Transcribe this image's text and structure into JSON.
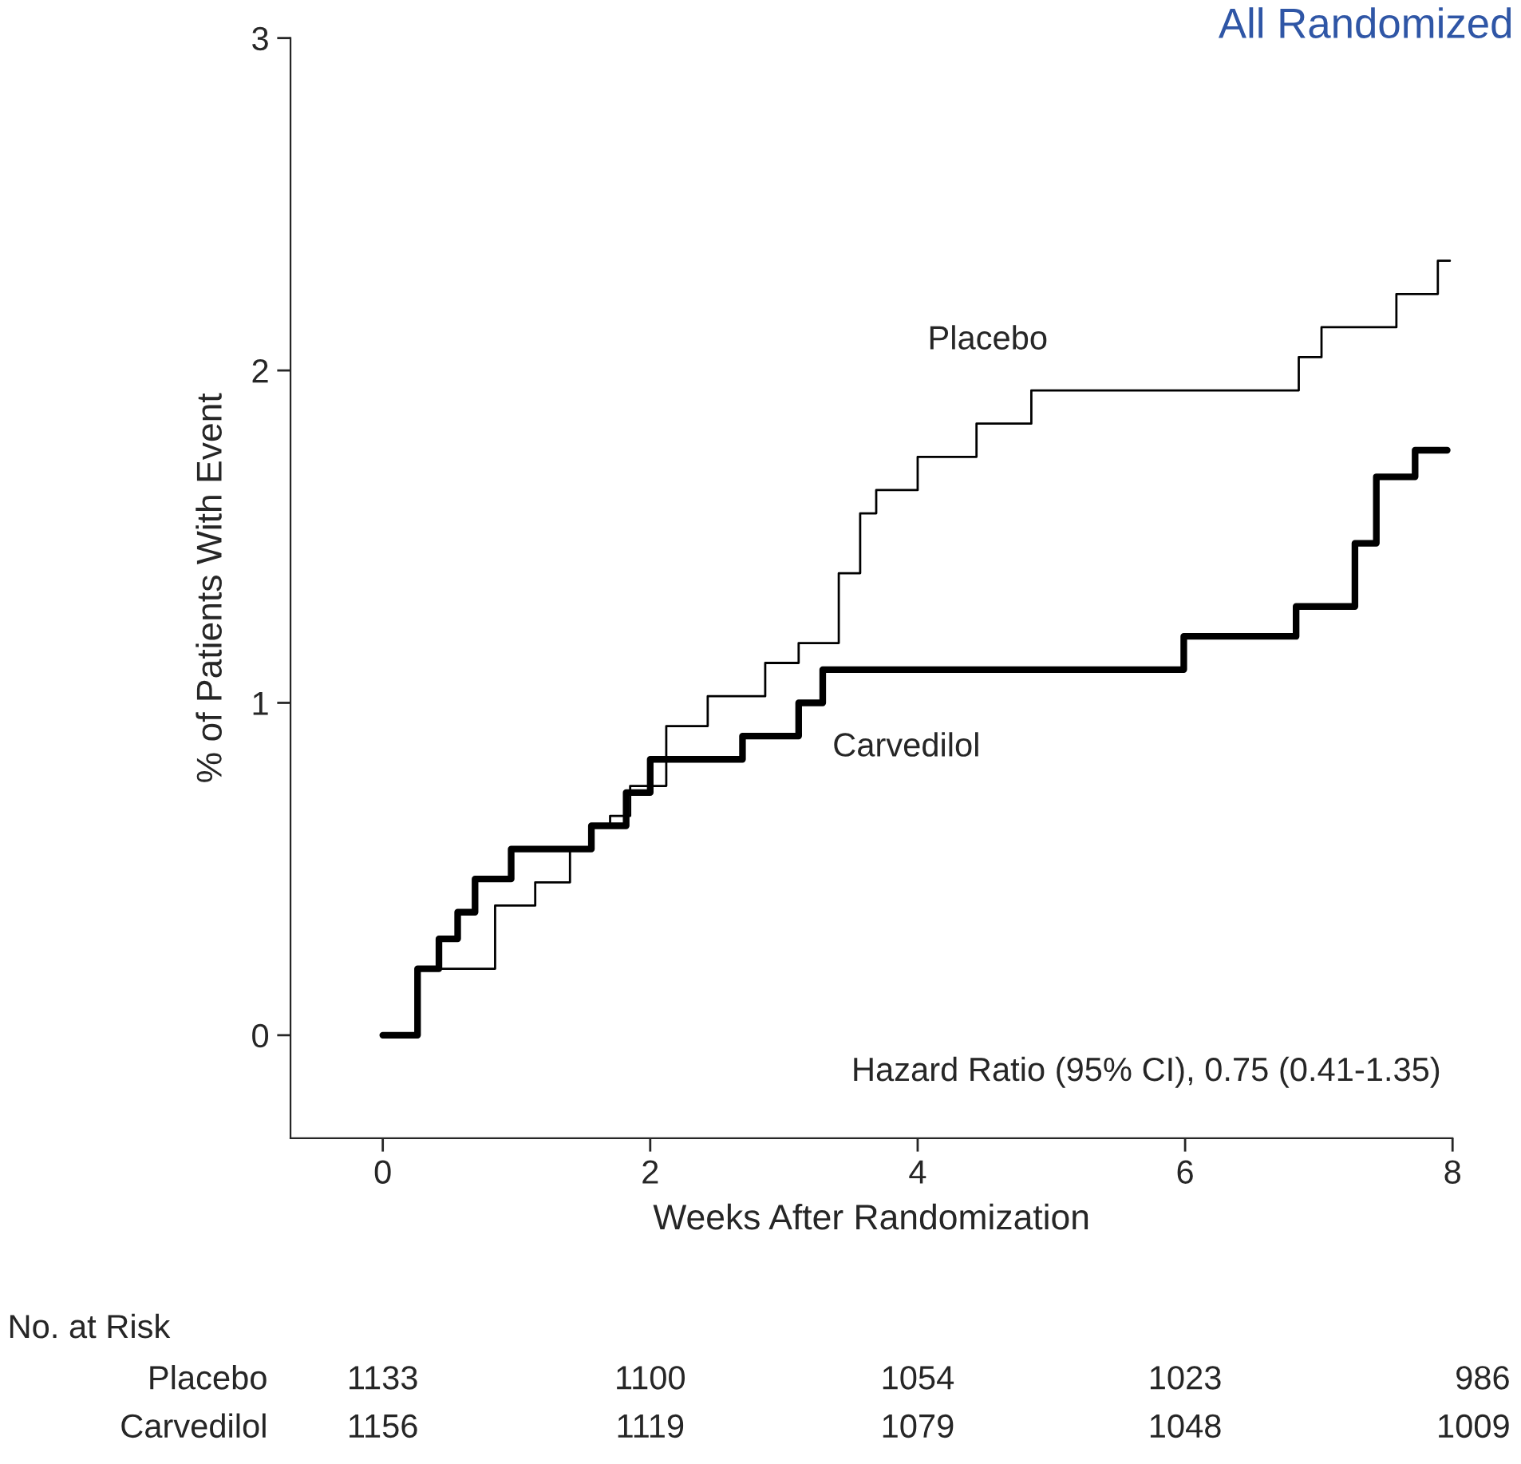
{
  "chart_data": {
    "type": "step",
    "title": "All Randomized",
    "xlabel": "Weeks After Randomization",
    "ylabel": "% of Patients With Event",
    "series": [
      {
        "name": "Placebo",
        "color": "#000000",
        "x": [
          0,
          0.26,
          0.84,
          1.14,
          1.4,
          1.56,
          1.7,
          1.85,
          2.12,
          2.43,
          2.86,
          3.11,
          3.41,
          3.57,
          3.69,
          4.0,
          4.44,
          4.85,
          6.85,
          7.02,
          7.58,
          7.89,
          7.98
        ],
        "values": [
          0,
          0.2,
          0.39,
          0.46,
          0.56,
          0.63,
          0.66,
          0.75,
          0.93,
          1.02,
          1.12,
          1.18,
          1.39,
          1.57,
          1.64,
          1.74,
          1.84,
          1.94,
          2.04,
          2.13,
          2.23,
          2.33,
          2.33
        ]
      },
      {
        "name": "Carvedilol",
        "color": "#000000",
        "x": [
          0,
          0.26,
          0.42,
          0.56,
          0.69,
          0.96,
          1.56,
          1.82,
          2.0,
          2.69,
          3.11,
          3.29,
          5.99,
          6.83,
          7.27,
          7.43,
          7.72,
          7.96
        ],
        "values": [
          0,
          0.2,
          0.29,
          0.37,
          0.47,
          0.56,
          0.63,
          0.73,
          0.83,
          0.9,
          1.0,
          1.1,
          1.2,
          1.29,
          1.48,
          1.68,
          1.76,
          1.76
        ]
      }
    ],
    "xlim": [
      -0.69,
      8.0
    ],
    "ylim": [
      -0.31,
      3
    ],
    "xticks": [
      0,
      2,
      4,
      6,
      8
    ],
    "yticks": [
      0,
      1,
      2,
      3
    ],
    "grid": false,
    "legend": false,
    "annotations": [
      "Hazard Ratio (95% CI), 0.75 (0.41-1.35)",
      "No. at Risk",
      "Placebo",
      "1133",
      "1100",
      "1054",
      "1023",
      "986",
      "Carvedilol",
      "1156",
      "1119",
      "1079",
      "1048",
      "1009"
    ]
  }
}
